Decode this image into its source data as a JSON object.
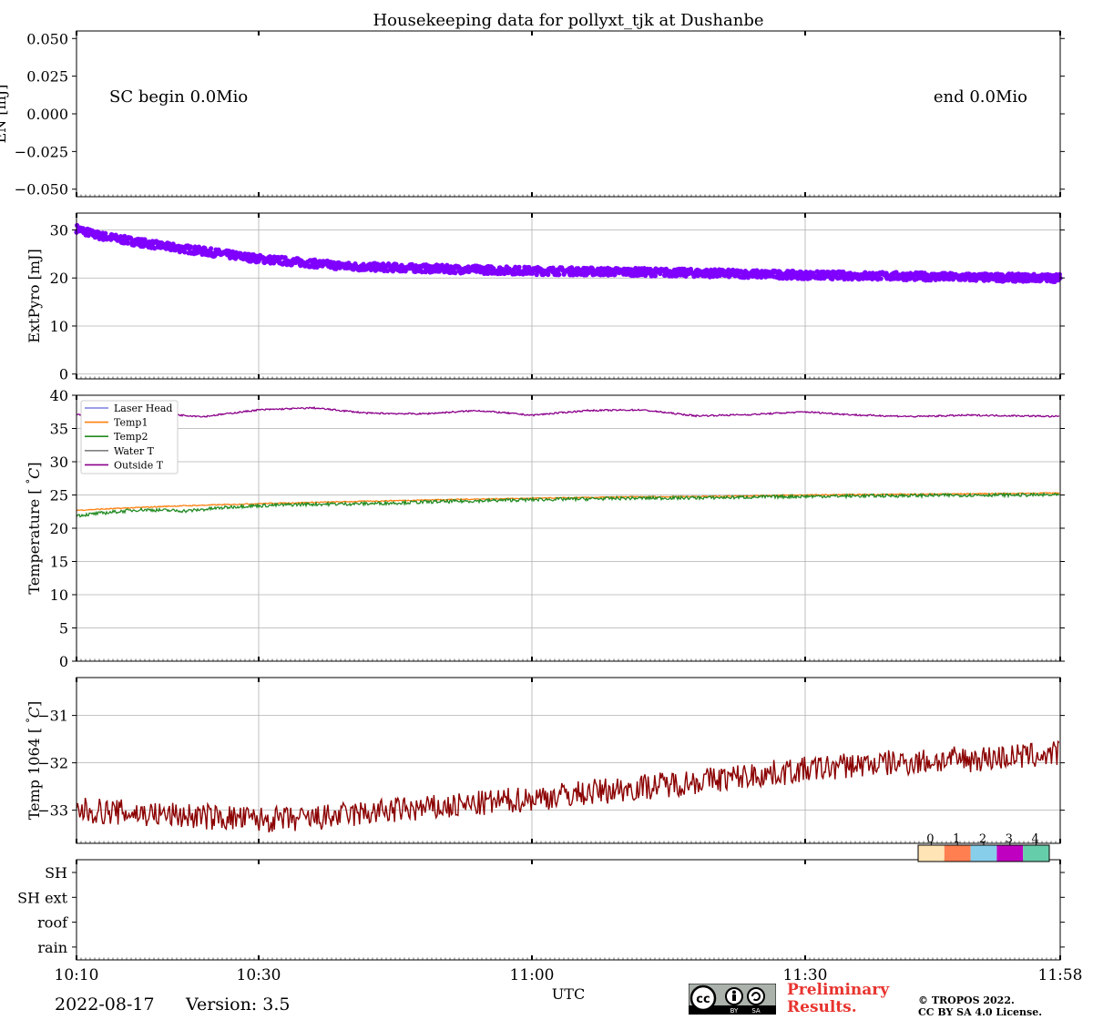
{
  "title": "Housekeeping data for pollyxt_tjk at Dushanbe",
  "footer": {
    "date": "2022-08-17",
    "version": "Version: 3.5",
    "preliminary_line1": "Preliminary",
    "preliminary_line2": "Results.",
    "copyright_line1": "© TROPOS 2022.",
    "copyright_line2": "CC BY SA 4.0 License.",
    "cc_text": "cc",
    "cc_by": "BY",
    "cc_sa": "SA"
  },
  "x_axis": {
    "label": "UTC",
    "start_min": 610,
    "end_min": 718,
    "ticks": [
      {
        "min": 610,
        "label": "10:10"
      },
      {
        "min": 630,
        "label": "10:30"
      },
      {
        "min": 660,
        "label": "11:00"
      },
      {
        "min": 690,
        "label": "11:30"
      },
      {
        "min": 718,
        "label": "11:58"
      }
    ]
  },
  "chart_data": [
    {
      "type": "line",
      "panel": "EN",
      "ylabel": "EN [mJ]",
      "ylim": [
        -0.055,
        0.055
      ],
      "yticks": [
        -0.05,
        -0.025,
        0.0,
        0.025,
        0.05
      ],
      "ytick_labels": [
        "−0.050",
        "−0.025",
        "0.000",
        "0.025",
        "0.050"
      ],
      "grid": false,
      "annotations": {
        "left": "SC begin 0.0Mio",
        "right": "end 0.0Mio"
      },
      "series": []
    },
    {
      "type": "scatter",
      "panel": "ExtPyro",
      "ylabel": "ExtPyro [mJ]",
      "ylim": [
        -1,
        33.5
      ],
      "yticks": [
        0,
        10,
        20,
        30
      ],
      "ytick_labels": [
        "0",
        "10",
        "20",
        "30"
      ],
      "grid": true,
      "series": [
        {
          "color": "#8000ff",
          "x": [
            610,
            612,
            615,
            620,
            625,
            630,
            640,
            650,
            660,
            670,
            680,
            690,
            700,
            710,
            718
          ],
          "y": [
            30.3,
            29.0,
            28.0,
            26.5,
            25.3,
            24.0,
            22.4,
            21.9,
            21.5,
            21.3,
            21.0,
            20.6,
            20.4,
            20.1,
            20.0
          ]
        }
      ]
    },
    {
      "type": "line",
      "panel": "Temperature",
      "ylabel": "Temperature [$^\\circ C$]",
      "ylabel_text": "Temperature [",
      "ylabel_unit": "C",
      "ylabel_end": "]",
      "ylim": [
        0,
        40
      ],
      "yticks": [
        0,
        5,
        10,
        15,
        20,
        25,
        30,
        35,
        40
      ],
      "ytick_labels": [
        "0",
        "5",
        "10",
        "15",
        "20",
        "25",
        "30",
        "35",
        "40"
      ],
      "grid": true,
      "legend": "top-left",
      "series": [
        {
          "name": "Laser Head",
          "color": "#7b7fe0",
          "x": [],
          "y": []
        },
        {
          "name": "Temp1",
          "color": "#ff7f0e",
          "x": [
            610,
            615,
            620,
            630,
            640,
            650,
            660,
            670,
            680,
            690,
            700,
            710,
            718
          ],
          "y": [
            22.7,
            23.0,
            23.3,
            23.7,
            24.0,
            24.3,
            24.5,
            24.7,
            24.8,
            25.0,
            25.1,
            25.2,
            25.3
          ]
        },
        {
          "name": "Temp2",
          "color": "#228b22",
          "x": [
            610,
            613,
            617,
            622,
            628,
            635,
            642,
            650,
            660,
            670,
            680,
            690,
            700,
            710,
            718
          ],
          "y": [
            21.9,
            22.3,
            22.8,
            22.6,
            23.3,
            23.6,
            23.7,
            24.0,
            24.3,
            24.5,
            24.6,
            24.8,
            24.9,
            25.0,
            25.0
          ]
        },
        {
          "name": "Water T",
          "color": "#808080",
          "x": [],
          "y": []
        },
        {
          "name": "Outside T",
          "color": "#8b008b",
          "x": [
            610,
            614,
            618,
            624,
            630,
            636,
            642,
            648,
            654,
            660,
            666,
            672,
            678,
            684,
            690,
            696,
            702,
            708,
            714,
            718
          ],
          "y": [
            37.0,
            37.6,
            37.3,
            36.8,
            37.8,
            38.1,
            37.3,
            37.2,
            37.7,
            37.0,
            37.7,
            37.8,
            36.9,
            37.1,
            37.5,
            37.0,
            36.8,
            37.0,
            36.9,
            36.8
          ]
        }
      ]
    },
    {
      "type": "line",
      "panel": "Temp1064",
      "ylabel": "Temp 1064 [$^\\circ C$]",
      "ylabel_text": "Temp 1064 [",
      "ylabel_unit": "C",
      "ylabel_end": "]",
      "ylim": [
        -33.7,
        -30.2
      ],
      "yticks": [
        -33,
        -32,
        -31
      ],
      "ytick_labels": [
        "−33",
        "−32",
        "−31"
      ],
      "grid": true,
      "series": [
        {
          "color": "#8b0000",
          "x": [
            610,
            615,
            620,
            625,
            630,
            635,
            640,
            645,
            650,
            655,
            660,
            665,
            670,
            675,
            680,
            685,
            690,
            695,
            700,
            705,
            710,
            715,
            718
          ],
          "y": [
            -33.0,
            -33.05,
            -33.1,
            -33.15,
            -33.2,
            -33.2,
            -33.1,
            -33.0,
            -32.95,
            -32.85,
            -32.75,
            -32.65,
            -32.55,
            -32.45,
            -32.35,
            -32.25,
            -32.15,
            -32.05,
            -32.0,
            -31.95,
            -31.9,
            -31.85,
            -31.8
          ]
        }
      ]
    },
    {
      "type": "heatmap",
      "panel": "Status",
      "ycategories": [
        "SH",
        "SH ext",
        "roof",
        "rain"
      ],
      "colorbar": {
        "labels": [
          "0",
          "1",
          "2",
          "3",
          "4"
        ],
        "colors": [
          "#ffe4b5",
          "#ff7f50",
          "#87ceeb",
          "#c000c0",
          "#66cdaa"
        ]
      },
      "values": []
    }
  ]
}
